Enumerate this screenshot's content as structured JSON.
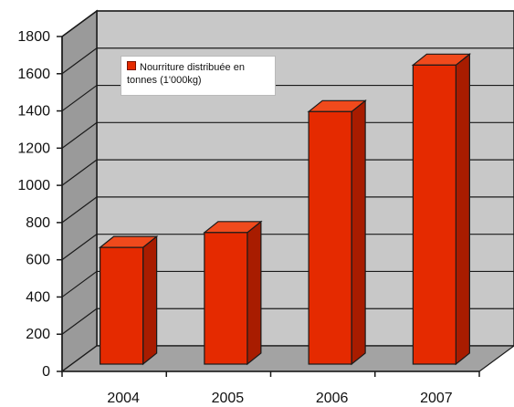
{
  "chart_data": {
    "type": "bar",
    "categories": [
      "2004",
      "2005",
      "2006",
      "2007"
    ],
    "series": [
      {
        "name": "Nourriture distribuée en tonnes (1'000kg)",
        "values": [
          735,
          815,
          1465,
          1715
        ]
      }
    ],
    "ylim": [
      0,
      1800
    ],
    "yticks": [
      "0",
      "200",
      "400",
      "600",
      "800",
      "1000",
      "1200",
      "1400",
      "1600",
      "1800"
    ],
    "grid": true,
    "legend_position": "top-left",
    "colors": {
      "bar_front": "#e52a00",
      "bar_side": "#a81c00",
      "bar_top": "#f04a1c",
      "wall": "#c8c8c8",
      "floor": "#a3a3a3"
    }
  }
}
